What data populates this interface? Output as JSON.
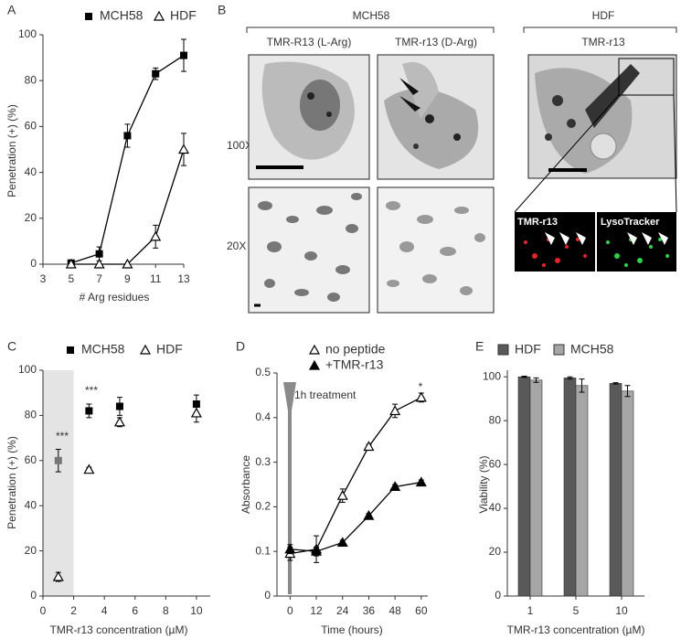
{
  "chart_data": [
    {
      "type": "line",
      "panel": "A",
      "xlabel": "# Arg residues",
      "ylabel": "Penetration (+)  (%)",
      "x": [
        5,
        7,
        9,
        11,
        13
      ],
      "series": [
        {
          "name": "MCH58",
          "color": "#000000",
          "marker": "square",
          "values": [
            0.5,
            4.5,
            56,
            83,
            91
          ],
          "errors": [
            0.5,
            3,
            5,
            2.5,
            7
          ]
        },
        {
          "name": "HDF",
          "color": "#000000",
          "marker": "triangle-open",
          "values": [
            0,
            0,
            0,
            12,
            50
          ],
          "errors": [
            0,
            0,
            0,
            5,
            7
          ]
        }
      ],
      "xlim": [
        3,
        13
      ],
      "xticks": [
        3,
        5,
        7,
        9,
        11,
        13
      ],
      "ylim": [
        0,
        100
      ],
      "yticks": [
        0,
        20,
        40,
        60,
        80,
        100
      ]
    },
    {
      "type": "scatter",
      "panel": "C",
      "xlabel": "TMR-r13 concentration (µM)",
      "ylabel": "Penetration (+)  (%)",
      "x": [
        1,
        3,
        5,
        10
      ],
      "series": [
        {
          "name": "MCH58",
          "color": "#000000",
          "marker": "square",
          "values": [
            60,
            82,
            84,
            85
          ],
          "errors": [
            5,
            3,
            4,
            4
          ]
        },
        {
          "name": "HDF",
          "color": "#000000",
          "marker": "triangle-open",
          "values": [
            8.5,
            56,
            77,
            81
          ],
          "errors": [
            2,
            1,
            2,
            4
          ]
        }
      ],
      "shaded_xrange": [
        0,
        2
      ],
      "shade_color": "#e4e4e4",
      "highlight_color": "#777777",
      "annotations": [
        "***",
        "***"
      ],
      "xlim": [
        0,
        10.9
      ],
      "xticks": [
        0,
        2,
        4,
        6,
        8,
        10
      ],
      "ylim": [
        0,
        100
      ],
      "yticks": [
        0,
        20,
        40,
        60,
        80,
        100
      ]
    },
    {
      "type": "line",
      "panel": "D",
      "xlabel": "Time (hours)",
      "ylabel": "Absorbance",
      "x": [
        0,
        12,
        24,
        36,
        48,
        60
      ],
      "series": [
        {
          "name": "no peptide",
          "color": "#000000",
          "marker": "triangle-open",
          "values": [
            0.095,
            0.105,
            0.225,
            0.335,
            0.415,
            0.445
          ],
          "errors": [
            0.015,
            0.03,
            0.015,
            0.005,
            0.015,
            0.01
          ]
        },
        {
          "name": "+TMR-r13",
          "color": "#000000",
          "marker": "triangle-filled",
          "values": [
            0.105,
            0.1,
            0.12,
            0.18,
            0.245,
            0.255
          ],
          "errors": [
            0.01,
            0.01,
            0.005,
            0.005,
            0.005,
            0.005
          ]
        }
      ],
      "annotations": [
        "1h treatment",
        "*"
      ],
      "xlim": [
        -6,
        63
      ],
      "xticks": [
        0,
        12,
        24,
        36,
        48,
        60
      ],
      "ylim": [
        0,
        0.5
      ],
      "yticks": [
        0,
        0.1,
        0.2,
        0.3,
        0.4,
        0.5
      ]
    },
    {
      "type": "bar",
      "panel": "E",
      "xlabel": "TMR-r13 concentration (µM)",
      "ylabel": "Viability (%)",
      "categories": [
        "1",
        "5",
        "10"
      ],
      "series": [
        {
          "name": "HDF",
          "color": "#595959",
          "values": [
            100,
            99.5,
            97
          ],
          "errors": [
            0.3,
            0.5,
            0.3
          ]
        },
        {
          "name": "MCH58",
          "color": "#a6a6a6",
          "values": [
            98.5,
            96,
            93.5
          ],
          "errors": [
            1,
            3,
            2.5
          ]
        }
      ],
      "ylim": [
        0,
        103
      ],
      "yticks": [
        0,
        20,
        40,
        60,
        80,
        100
      ]
    }
  ],
  "panel_b": {
    "label": "B",
    "groups": [
      "MCH58",
      "HDF"
    ],
    "columns": [
      "TMR-R13 (L-Arg)",
      "TMR-r13 (D-Arg)",
      "TMR-r13"
    ],
    "rows": [
      "100X",
      "20X"
    ],
    "inset_labels": [
      "TMR-r13",
      "LysoTracker"
    ]
  }
}
